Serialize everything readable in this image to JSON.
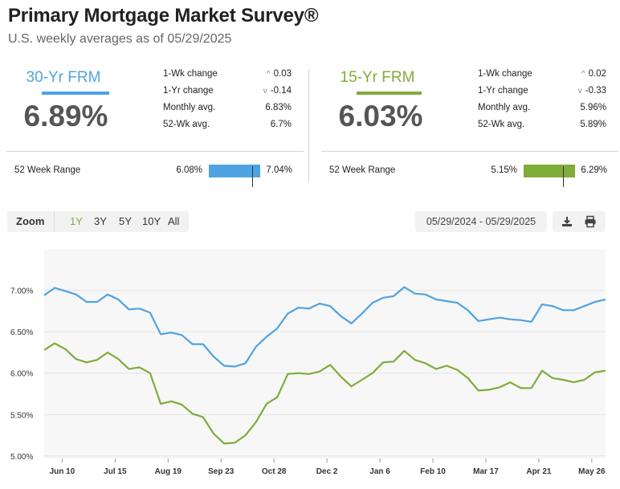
{
  "header": {
    "title": "Primary Mortgage Market Survey®",
    "subtitle": "U.S. weekly averages as of 05/29/2025"
  },
  "colors": {
    "frm30": "#4fa3e0",
    "frm15": "#80ac3a",
    "zoom_active": "#80ac3a"
  },
  "frm30": {
    "label": "30-Yr FRM",
    "rate": "6.89%",
    "wk_change_label": "1-Wk change",
    "wk_change_arrow": "^",
    "wk_change": "0.03",
    "yr_change_label": "1-Yr change",
    "yr_change_arrow": "v",
    "yr_change": "-0.14",
    "monthly_label": "Monthly avg.",
    "monthly": "6.83%",
    "wk52_label": "52-Wk avg.",
    "wk52": "6.7%",
    "range_label": "52 Week Range",
    "range_low": "6.08%",
    "range_high": "7.04%",
    "range_current_fraction": 0.85
  },
  "frm15": {
    "label": "15-Yr FRM",
    "rate": "6.03%",
    "wk_change_label": "1-Wk change",
    "wk_change_arrow": "^",
    "wk_change": "0.02",
    "yr_change_label": "1-Yr change",
    "yr_change_arrow": "v",
    "yr_change": "-0.33",
    "monthly_label": "Monthly avg.",
    "monthly": "5.96%",
    "wk52_label": "52-Wk avg.",
    "wk52": "5.89%",
    "range_label": "52 Week Range",
    "range_low": "5.15%",
    "range_high": "6.29%",
    "range_current_fraction": 0.77
  },
  "toolbar": {
    "zoom_label": "Zoom",
    "zoom_options": [
      "1Y",
      "3Y",
      "5Y",
      "10Y",
      "All"
    ],
    "zoom_selected": "1Y",
    "date_range": "05/29/2024 - 05/29/2025",
    "download_icon": "download-icon",
    "print_icon": "print-icon"
  },
  "chart_data": {
    "type": "line",
    "y_ticks": [
      "7.00%",
      "6.50%",
      "6.00%",
      "5.50%",
      "5.00%"
    ],
    "y_tick_values": [
      7.0,
      6.5,
      6.0,
      5.5,
      5.0
    ],
    "ylim": [
      4.97,
      7.5
    ],
    "x_ticks": [
      "Jun 10",
      "Jul 15",
      "Aug 19",
      "Sep 23",
      "Oct 28",
      "Dec 2",
      "Jan 6",
      "Feb 10",
      "Mar 17",
      "Apr 21",
      "May 26"
    ],
    "x_tick_weeks": [
      1.7,
      6.7,
      11.7,
      16.7,
      21.7,
      26.7,
      31.7,
      36.7,
      41.7,
      46.7,
      51.7
    ],
    "grid": true,
    "series": [
      {
        "color": "#4fa3e0",
        "values": [
          6.94,
          7.03,
          6.99,
          6.95,
          6.86,
          6.86,
          6.95,
          6.89,
          6.77,
          6.78,
          6.73,
          6.47,
          6.49,
          6.46,
          6.35,
          6.35,
          6.2,
          6.09,
          6.08,
          6.12,
          6.32,
          6.44,
          6.54,
          6.72,
          6.79,
          6.78,
          6.84,
          6.81,
          6.69,
          6.6,
          6.72,
          6.85,
          6.91,
          6.93,
          7.04,
          6.96,
          6.95,
          6.89,
          6.87,
          6.85,
          6.76,
          6.63,
          6.65,
          6.67,
          6.65,
          6.64,
          6.62,
          6.83,
          6.81,
          6.76,
          6.76,
          6.81,
          6.86,
          6.89
        ]
      },
      {
        "color": "#80ac3a",
        "values": [
          6.28,
          6.36,
          6.29,
          6.17,
          6.13,
          6.16,
          6.25,
          6.17,
          6.05,
          6.07,
          6.0,
          5.63,
          5.66,
          5.62,
          5.51,
          5.47,
          5.27,
          5.15,
          5.16,
          5.25,
          5.41,
          5.63,
          5.71,
          5.99,
          6.0,
          5.99,
          6.02,
          6.1,
          5.96,
          5.84,
          5.92,
          6.0,
          6.13,
          6.14,
          6.27,
          6.16,
          6.12,
          6.05,
          6.09,
          6.04,
          5.94,
          5.79,
          5.8,
          5.83,
          5.89,
          5.82,
          5.82,
          6.03,
          5.94,
          5.92,
          5.89,
          5.92,
          6.01,
          6.03
        ]
      }
    ]
  }
}
